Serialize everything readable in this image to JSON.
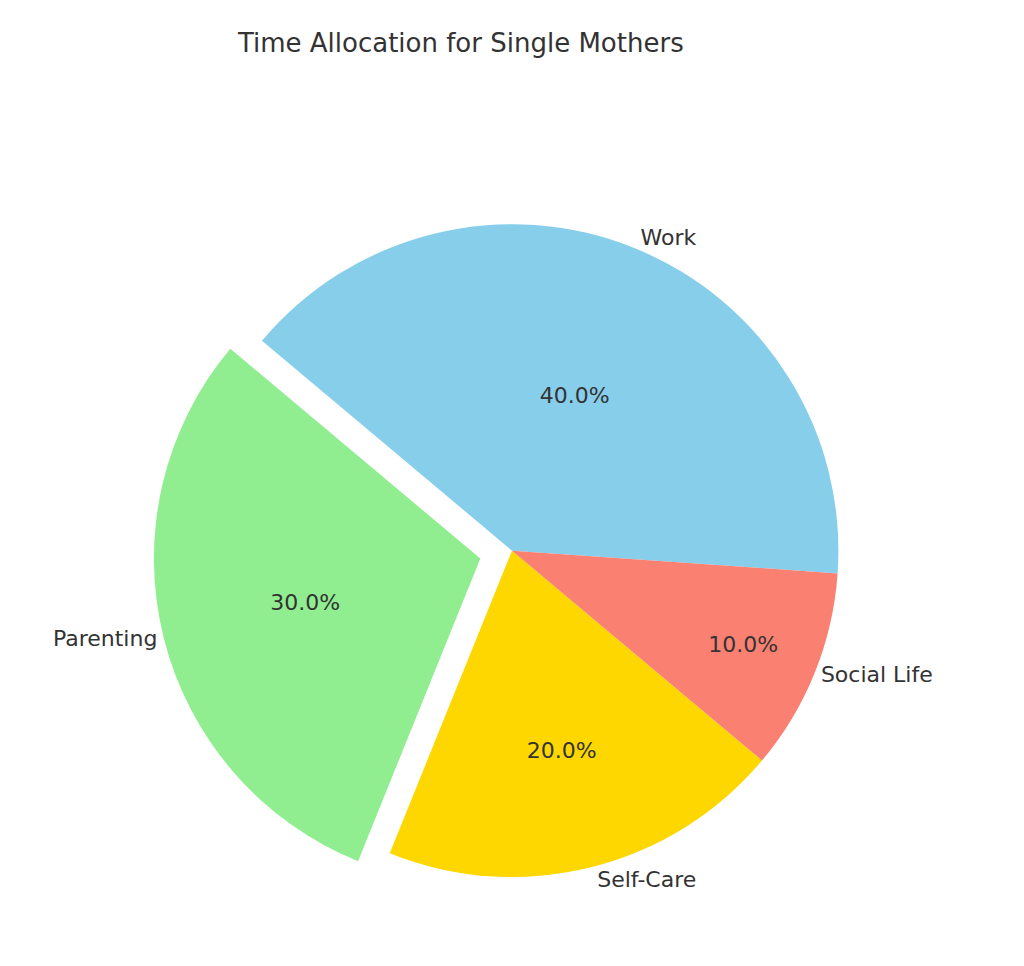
{
  "chart_data": {
    "type": "pie",
    "title": "Time Allocation for Single Mothers",
    "categories": [
      "Work",
      "Parenting",
      "Self-Care",
      "Social Life"
    ],
    "values": [
      40,
      30,
      20,
      10
    ],
    "value_labels": [
      "40.0%",
      "30.0%",
      "20.0%",
      "10.0%"
    ],
    "colors": [
      "#87ceeb",
      "#90ee90",
      "#ffd700",
      "#fa8072"
    ],
    "data_labels": true
  }
}
